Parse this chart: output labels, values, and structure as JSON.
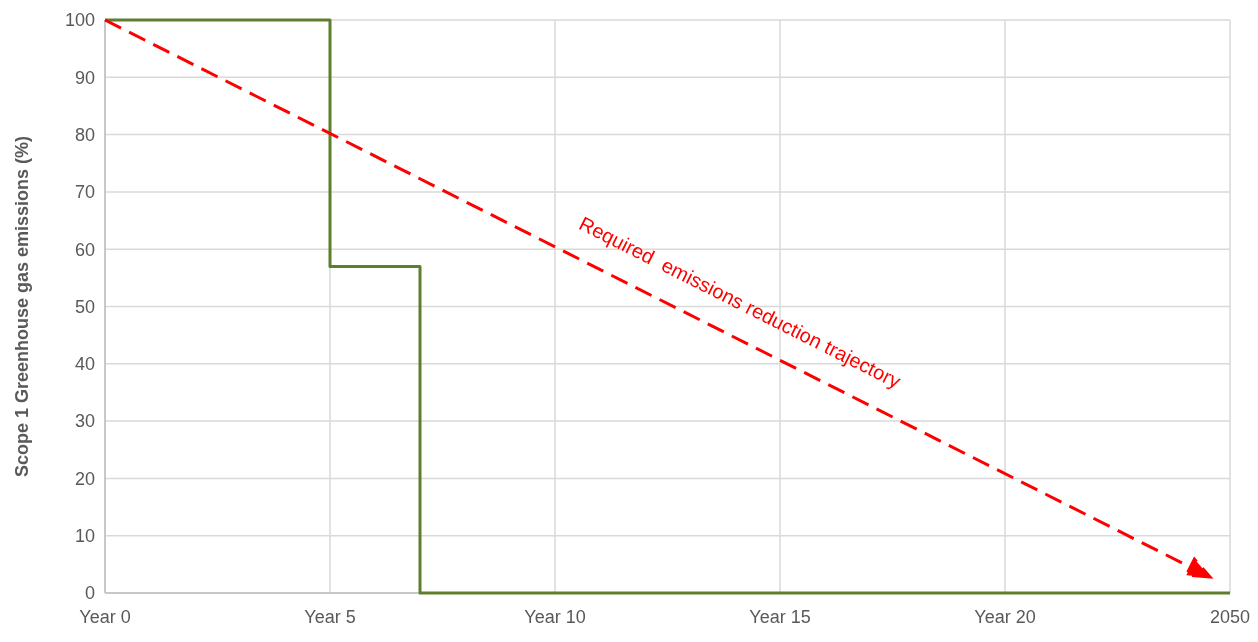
{
  "chart_data": {
    "type": "line",
    "ylabel": "Scope 1 Greenhouse gas emissions (%)",
    "categories": [
      "Year 0",
      null,
      null,
      null,
      null,
      "Year 5",
      null,
      null,
      null,
      null,
      "Year 10",
      null,
      null,
      null,
      null,
      "Year 15",
      null,
      null,
      null,
      null,
      "Year 20",
      null,
      null,
      null,
      null,
      "2050"
    ],
    "ylim": [
      0,
      100
    ],
    "yticks": [
      0,
      10,
      20,
      30,
      40,
      50,
      60,
      70,
      80,
      90,
      100
    ],
    "grid": true,
    "series": [
      {
        "type": "step",
        "color": "#5e7e2e",
        "line_style": "solid",
        "values": [
          100,
          100,
          100,
          100,
          100,
          57,
          57,
          0,
          0,
          0,
          0,
          0,
          0,
          0,
          0,
          0,
          0,
          0,
          0,
          0,
          0,
          0,
          0,
          0,
          0,
          0
        ]
      }
    ],
    "annotations": [
      "Required  emissions reduction trajectory"
    ]
  }
}
